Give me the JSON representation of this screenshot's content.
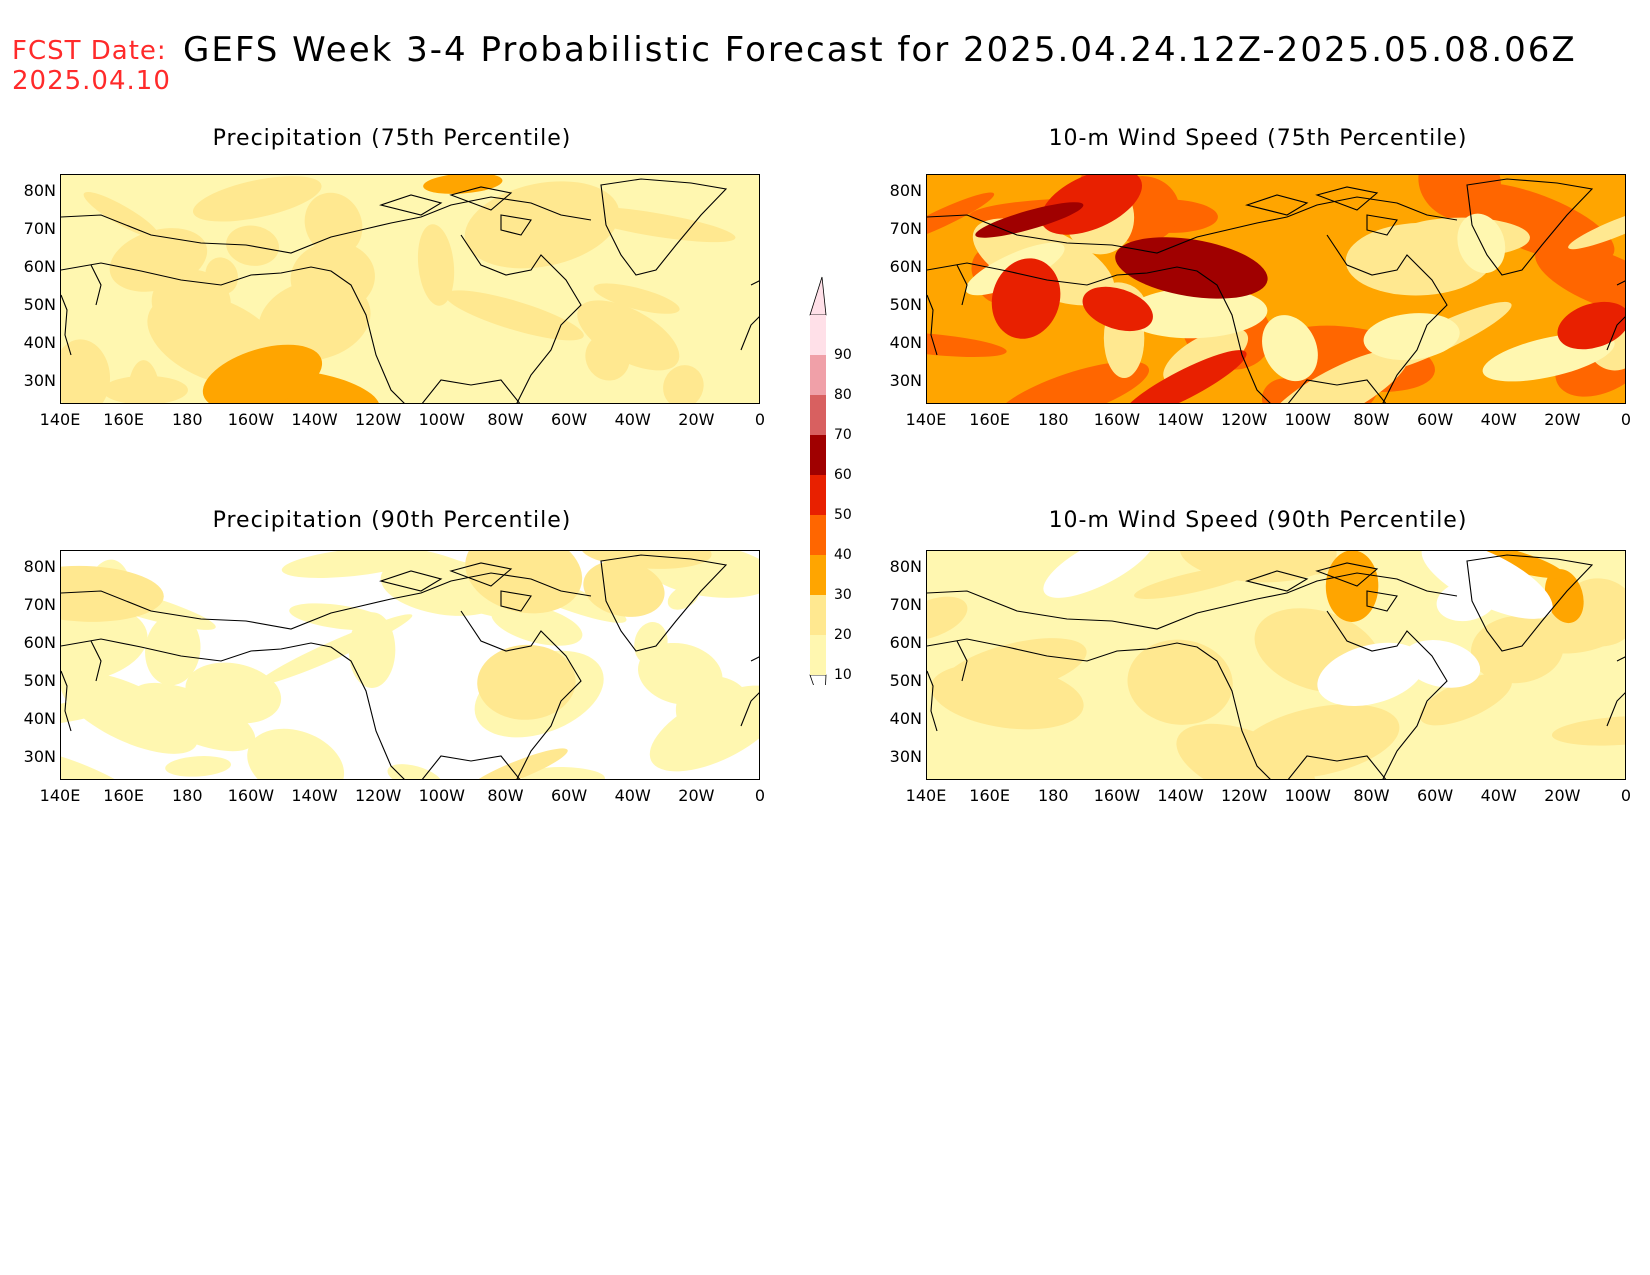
{
  "fcst_label": "FCST Date:",
  "fcst_date": "2025.04.10",
  "title": "GEFS Week 3-4 Probabilistic Forecast for 2025.04.24.12Z-2025.05.08.06Z",
  "panels": [
    {
      "title": "Precipitation (75th Percentile)",
      "dominant": "low",
      "pattern": "yellow-light"
    },
    {
      "title": "10-m Wind Speed (75th Percentile)",
      "dominant": "high",
      "pattern": "orange"
    },
    {
      "title": "Precipitation (90th Percentile)",
      "dominant": "sparse",
      "pattern": "mostly-white"
    },
    {
      "title": "10-m Wind Speed (90th Percentile)",
      "dominant": "low",
      "pattern": "yellow"
    }
  ],
  "lat_ticks": [
    "80N",
    "70N",
    "60N",
    "50N",
    "40N",
    "30N"
  ],
  "lon_ticks": [
    "140E",
    "160E",
    "180",
    "160W",
    "140W",
    "120W",
    "100W",
    "80W",
    "60W",
    "40W",
    "20W",
    "0"
  ],
  "colorbar": {
    "levels": [
      "10",
      "20",
      "30",
      "40",
      "50",
      "60",
      "70",
      "80",
      "90"
    ],
    "colors": [
      "#fff7b0",
      "#ffe890",
      "#ffa500",
      "#ff6600",
      "#e82000",
      "#a00000",
      "#d86060",
      "#f0a0a8",
      "#ffe0e8"
    ]
  }
}
